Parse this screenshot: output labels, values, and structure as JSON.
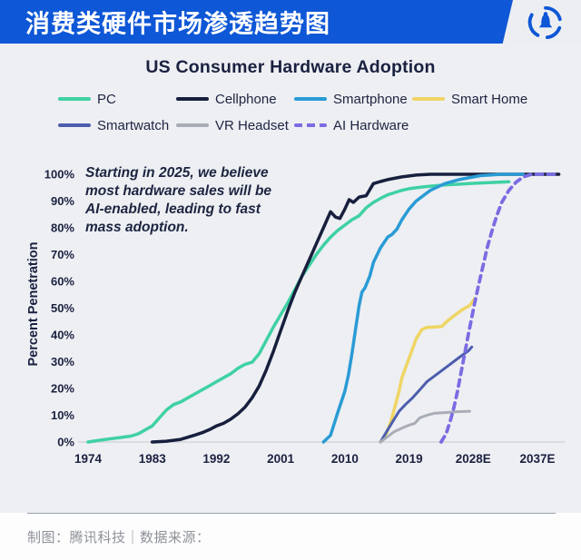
{
  "header": {
    "title": "消费类硬件市场渗透趋势图",
    "logo": "tencent-tech-bell-logo"
  },
  "chart": {
    "title": "US Consumer Hardware Adoption",
    "y_axis_title": "Percent Penetration",
    "annotation": "Starting in 2025, we believe\nmost hardware sales will be\nAI-enabled, leading to fast\nmass adoption."
  },
  "footer": {
    "credit": "制图：腾讯科技｜数据来源："
  },
  "colors": {
    "header_blue": "#0e57d6",
    "ink_navy": "#1b2140",
    "baseline_gray": "#d3d6db"
  },
  "chart_data": {
    "type": "line",
    "title": "US Consumer Hardware Adoption",
    "xlabel": "",
    "ylabel": "Percent Penetration",
    "ylim": [
      0,
      100
    ],
    "xlim": [
      1974,
      2040
    ],
    "grid": false,
    "legend_position": "top",
    "x_tick_labels": [
      "1974",
      "1983",
      "1992",
      "2001",
      "2010",
      "2019",
      "2028E",
      "2037E"
    ],
    "x_tick_values": [
      1974,
      1983,
      1992,
      2001,
      2010,
      2019,
      2028,
      2037
    ],
    "y_tick_labels": [
      "0%",
      "10%",
      "20%",
      "30%",
      "40%",
      "50%",
      "60%",
      "70%",
      "80%",
      "90%",
      "100%"
    ],
    "y_tick_values": [
      0,
      10,
      20,
      30,
      40,
      50,
      60,
      70,
      80,
      90,
      100
    ],
    "series": [
      {
        "name": "PC",
        "color": "#3fd1a3",
        "dash": false,
        "width": 3.5,
        "points": [
          [
            1974,
            0
          ],
          [
            1976,
            0.8
          ],
          [
            1978,
            1.5
          ],
          [
            1980,
            2.2
          ],
          [
            1981,
            3
          ],
          [
            1982,
            4.5
          ],
          [
            1983,
            6
          ],
          [
            1984,
            9
          ],
          [
            1985,
            12
          ],
          [
            1986,
            14
          ],
          [
            1987,
            15
          ],
          [
            1988,
            16.5
          ],
          [
            1989,
            18
          ],
          [
            1990,
            19.5
          ],
          [
            1991,
            21
          ],
          [
            1992,
            22.5
          ],
          [
            1993,
            24
          ],
          [
            1994,
            25.5
          ],
          [
            1995,
            27.5
          ],
          [
            1996,
            29
          ],
          [
            1997,
            29.8
          ],
          [
            1998,
            33
          ],
          [
            1999,
            38
          ],
          [
            2000,
            43
          ],
          [
            2001,
            47.5
          ],
          [
            2002,
            52
          ],
          [
            2003,
            57
          ],
          [
            2004,
            62
          ],
          [
            2005,
            66
          ],
          [
            2006,
            70
          ],
          [
            2007,
            73.5
          ],
          [
            2008,
            76.5
          ],
          [
            2009,
            79
          ],
          [
            2010,
            81
          ],
          [
            2011,
            83
          ],
          [
            2012,
            84.5
          ],
          [
            2013,
            87.5
          ],
          [
            2014,
            89.5
          ],
          [
            2015,
            91
          ],
          [
            2016,
            92.3
          ],
          [
            2017,
            93.2
          ],
          [
            2018,
            94
          ],
          [
            2019,
            94.6
          ],
          [
            2021,
            95.3
          ],
          [
            2024,
            96
          ],
          [
            2028,
            96.6
          ],
          [
            2033,
            97.2
          ]
        ]
      },
      {
        "name": "Cellphone",
        "color": "#171f3d",
        "dash": false,
        "width": 3.5,
        "points": [
          [
            1983,
            0
          ],
          [
            1985,
            0.3
          ],
          [
            1987,
            1
          ],
          [
            1988,
            1.8
          ],
          [
            1989,
            2.6
          ],
          [
            1990,
            3.5
          ],
          [
            1991,
            4.6
          ],
          [
            1992,
            6
          ],
          [
            1993,
            7
          ],
          [
            1994,
            8.5
          ],
          [
            1995,
            10.5
          ],
          [
            1996,
            13
          ],
          [
            1997,
            16.5
          ],
          [
            1998,
            21
          ],
          [
            1999,
            27
          ],
          [
            2000,
            34
          ],
          [
            2001,
            41.5
          ],
          [
            2002,
            49
          ],
          [
            2003,
            56
          ],
          [
            2004,
            62
          ],
          [
            2005,
            68
          ],
          [
            2006,
            74
          ],
          [
            2007,
            80
          ],
          [
            2008,
            86
          ],
          [
            2008.7,
            84
          ],
          [
            2009.3,
            83.5
          ],
          [
            2010,
            87
          ],
          [
            2010.6,
            90.5
          ],
          [
            2011.2,
            89.5
          ],
          [
            2012,
            91.5
          ],
          [
            2013,
            92
          ],
          [
            2014,
            96.5
          ],
          [
            2015,
            97.3
          ],
          [
            2016,
            98
          ],
          [
            2018,
            99
          ],
          [
            2020,
            99.7
          ],
          [
            2022,
            100
          ],
          [
            2040,
            100
          ]
        ]
      },
      {
        "name": "Smartphone",
        "color": "#2a9bd5",
        "dash": false,
        "width": 3.5,
        "points": [
          [
            2007,
            0
          ],
          [
            2008,
            2.5
          ],
          [
            2009,
            11
          ],
          [
            2010,
            19
          ],
          [
            2010.5,
            25
          ],
          [
            2011,
            33
          ],
          [
            2011.5,
            42
          ],
          [
            2012,
            51
          ],
          [
            2012.4,
            56
          ],
          [
            2012.8,
            57.5
          ],
          [
            2013.5,
            62
          ],
          [
            2014,
            67
          ],
          [
            2015,
            72.5
          ],
          [
            2016,
            76.5
          ],
          [
            2016.6,
            77.5
          ],
          [
            2017.3,
            79.5
          ],
          [
            2018,
            83
          ],
          [
            2019,
            87
          ],
          [
            2020,
            90
          ],
          [
            2022,
            94
          ],
          [
            2024,
            96.5
          ],
          [
            2026,
            98
          ],
          [
            2029,
            99.5
          ],
          [
            2032,
            100
          ],
          [
            2035,
            100
          ]
        ]
      },
      {
        "name": "Smart Home",
        "color": "#efd564",
        "dash": false,
        "width": 3.5,
        "points": [
          [
            2015,
            0
          ],
          [
            2015.8,
            3
          ],
          [
            2016.5,
            8
          ],
          [
            2017,
            13
          ],
          [
            2017.6,
            19
          ],
          [
            2018,
            24
          ],
          [
            2018.9,
            30.5
          ],
          [
            2020,
            38.5
          ],
          [
            2020.8,
            42
          ],
          [
            2021.5,
            42.8
          ],
          [
            2023,
            43
          ],
          [
            2023.6,
            43.2
          ],
          [
            2024.5,
            45.5
          ],
          [
            2025.5,
            47.5
          ],
          [
            2026.5,
            49.5
          ],
          [
            2027.5,
            51
          ],
          [
            2028.2,
            53.5
          ]
        ]
      },
      {
        "name": "Smartwatch",
        "color": "#4d5ead",
        "dash": false,
        "width": 3,
        "points": [
          [
            2015,
            0
          ],
          [
            2016,
            4.5
          ],
          [
            2016.8,
            8
          ],
          [
            2017.6,
            11.5
          ],
          [
            2018.5,
            14
          ],
          [
            2019.5,
            16.5
          ],
          [
            2020.5,
            19.5
          ],
          [
            2021.5,
            22.5
          ],
          [
            2022.5,
            24.5
          ],
          [
            2023.5,
            26.5
          ],
          [
            2024.5,
            28.5
          ],
          [
            2025.5,
            30.5
          ],
          [
            2026.5,
            32.5
          ],
          [
            2027.3,
            34
          ],
          [
            2027.8,
            35.5
          ]
        ]
      },
      {
        "name": "VR Headset",
        "color": "#a8adb6",
        "dash": false,
        "width": 3,
        "points": [
          [
            2015,
            0
          ],
          [
            2016,
            2
          ],
          [
            2017,
            4
          ],
          [
            2018,
            5.2
          ],
          [
            2019,
            6.3
          ],
          [
            2019.8,
            7
          ],
          [
            2020.5,
            9
          ],
          [
            2021.5,
            10
          ],
          [
            2022.5,
            10.7
          ],
          [
            2024,
            11
          ],
          [
            2025.5,
            11.3
          ],
          [
            2027.5,
            11.5
          ]
        ]
      },
      {
        "name": "AI Hardware",
        "color": "#7a6ce2",
        "dash": true,
        "width": 3.8,
        "points": [
          [
            2023.5,
            0
          ],
          [
            2024.2,
            3
          ],
          [
            2024.8,
            8
          ],
          [
            2025.3,
            13
          ],
          [
            2025.8,
            19
          ],
          [
            2026.3,
            26
          ],
          [
            2026.8,
            33
          ],
          [
            2027.3,
            40
          ],
          [
            2027.8,
            46.5
          ],
          [
            2028.2,
            52
          ],
          [
            2028.7,
            58
          ],
          [
            2029.3,
            65
          ],
          [
            2030,
            73
          ],
          [
            2030.7,
            79.5
          ],
          [
            2031.3,
            84.5
          ],
          [
            2032,
            89.5
          ],
          [
            2033,
            94
          ],
          [
            2034,
            97
          ],
          [
            2035,
            99
          ],
          [
            2036.2,
            100
          ],
          [
            2040,
            100
          ]
        ]
      }
    ]
  }
}
